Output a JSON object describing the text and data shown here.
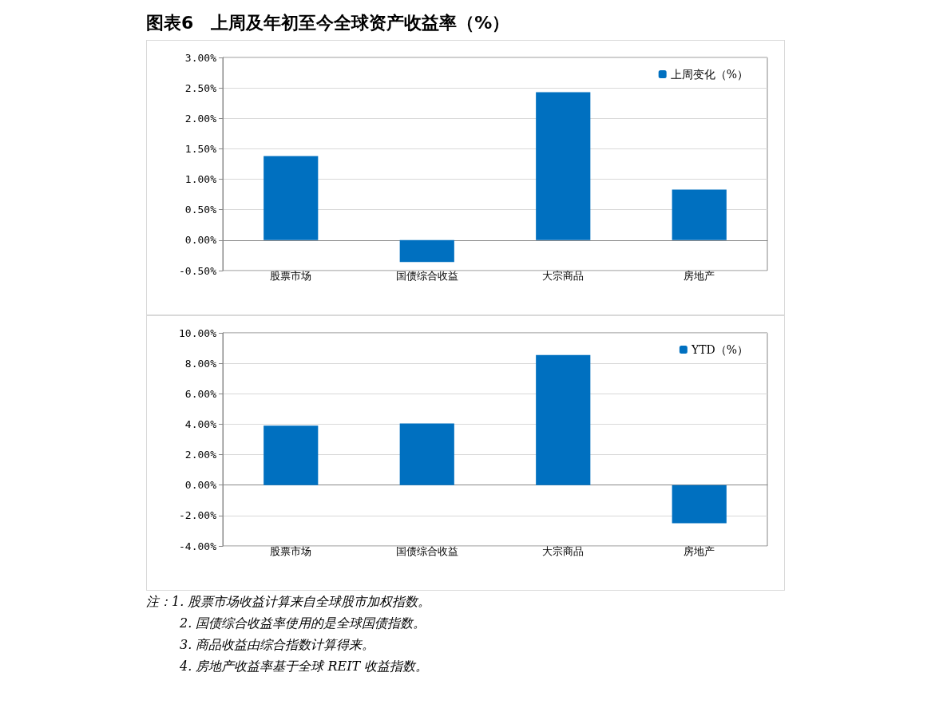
{
  "chart_data": [
    {
      "type": "bar",
      "title": "图表6　上周及年初至今全球资产收益率（%）",
      "categories": [
        "股票市场",
        "国债综合收益",
        "大宗商品",
        "房地产"
      ],
      "series": [
        {
          "name": "上周变化（%）",
          "color": "#0070c0",
          "values": [
            1.38,
            -0.36,
            2.43,
            0.83
          ]
        }
      ],
      "ylim": [
        -0.5,
        3
      ],
      "yticks": [
        {
          "value": -0.5,
          "label": "-0.50%"
        },
        {
          "value": 0,
          "label": "0.00%"
        },
        {
          "value": 0.5,
          "label": "0.50%"
        },
        {
          "value": 1,
          "label": "1.00%"
        },
        {
          "value": 1.5,
          "label": "1.50%"
        },
        {
          "value": 2,
          "label": "2.00%"
        },
        {
          "value": 2.5,
          "label": "2.50%"
        },
        {
          "value": 3,
          "label": "3.00%"
        }
      ],
      "grid": "y",
      "legend": "top right"
    },
    {
      "type": "bar",
      "categories": [
        "股票市场",
        "国债综合收益",
        "大宗商品",
        "房地产"
      ],
      "series": [
        {
          "name": "YTD（%）",
          "color": "#0070c0",
          "values": [
            3.9,
            4.05,
            8.55,
            -2.5
          ]
        }
      ],
      "ylim": [
        -4,
        10
      ],
      "yticks": [
        {
          "value": -4,
          "label": "-4.00%"
        },
        {
          "value": -2,
          "label": "-2.00%"
        },
        {
          "value": 0,
          "label": "0.00%"
        },
        {
          "value": 2,
          "label": "2.00%"
        },
        {
          "value": 4,
          "label": "4.00%"
        },
        {
          "value": 6,
          "label": "6.00%"
        },
        {
          "value": 8,
          "label": "8.00%"
        },
        {
          "value": 10,
          "label": "10.00%"
        }
      ],
      "grid": "y",
      "legend": "top right",
      "annotations": [
        "注：1. 股票市场收益计算来自全球股市加权指数。",
        "2. 国债综合收益率使用的是全球国债指数。",
        "3. 商品收益由综合指数计算得来。",
        "4. 房地产收益率基于全球 REIT 收益指数。"
      ]
    }
  ]
}
